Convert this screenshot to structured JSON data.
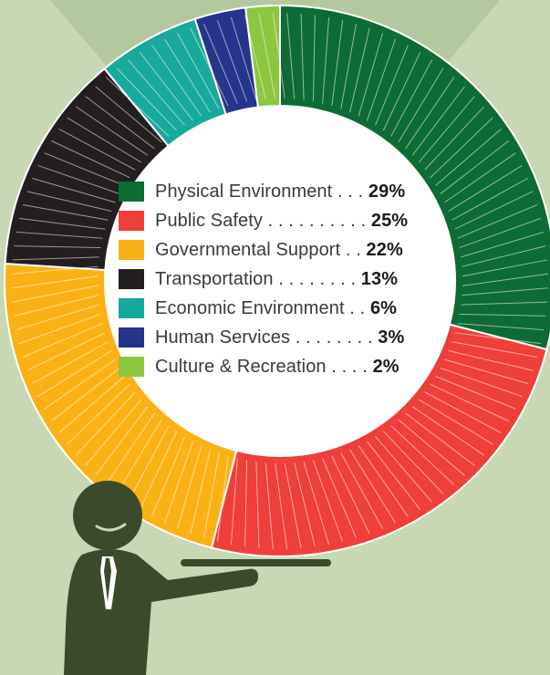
{
  "chart_data": {
    "type": "pie",
    "categories": [
      "Physical Environment",
      "Public Safety",
      "Governmental Support",
      "Transportation",
      "Economic Environment",
      "Human Services",
      "Culture & Recreation"
    ],
    "values": [
      29,
      25,
      22,
      13,
      6,
      3,
      2
    ],
    "value_labels": [
      "29%",
      "25%",
      "22%",
      "13%",
      "6%",
      "3%",
      "2%"
    ],
    "colors": [
      "#0d6b35",
      "#ef3f3a",
      "#fbb116",
      "#231f20",
      "#17a99c",
      "#26348b",
      "#8dc63f"
    ],
    "legend_text": [
      "Physical Environment . . .",
      "Public Safety . . . . . . . . . .",
      "Governmental Support . .",
      "Transportation . . . . . . . .",
      "Economic Environment . .",
      "Human Services . . . . . . . .",
      "Culture & Recreation . . . ."
    ],
    "legend_placement": "center"
  },
  "colors": {
    "background": "#c8d8b4",
    "figure": "#3c4a2c",
    "beam": "#b4c8a0",
    "center": "#ffffff"
  },
  "icons": {
    "presenter": "presenter-figure-icon",
    "tray": "serving-tray-icon"
  }
}
